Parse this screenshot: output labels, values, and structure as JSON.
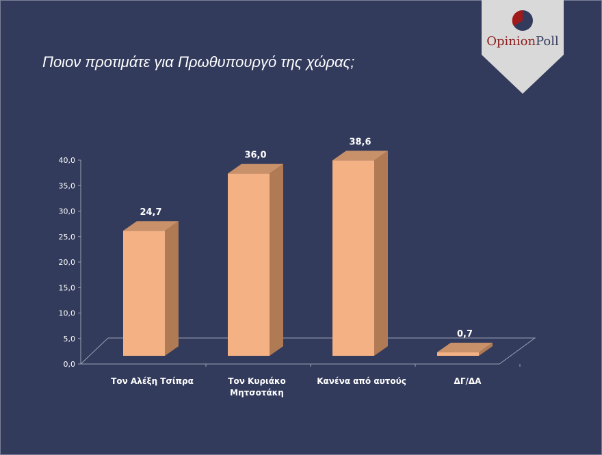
{
  "title": "Ποιον προτιμάτε για Πρωθυπουργό της χώρας;",
  "logo": {
    "part1": "Opinion",
    "part2": "Poll",
    "colors": {
      "red": "#8b1a1a",
      "navy": "#333b5c",
      "banner": "#d9d9d9"
    }
  },
  "chart_data": {
    "type": "bar",
    "style": "3d",
    "categories": [
      [
        "Τον Αλέξη Τσίπρα"
      ],
      [
        "Τον Κυριάκο",
        "Μητσοτάκη"
      ],
      [
        "Κανένα από αυτούς"
      ],
      [
        "ΔΓ/ΔΑ"
      ]
    ],
    "values": [
      24.7,
      36.0,
      38.6,
      0.7
    ],
    "data_labels": [
      "24,7",
      "36,0",
      "38,6",
      "0,7"
    ],
    "y_ticks": [
      "0,0",
      "5,0",
      "10,0",
      "15,0",
      "20,0",
      "25,0",
      "30,0",
      "35,0",
      "40,0"
    ],
    "ylim": [
      0,
      40
    ],
    "grid": false,
    "legend": "none",
    "bar_color": "#f4b183",
    "title": "Ποιον προτιμάτε για Πρωθυπουργό της χώρας;"
  }
}
